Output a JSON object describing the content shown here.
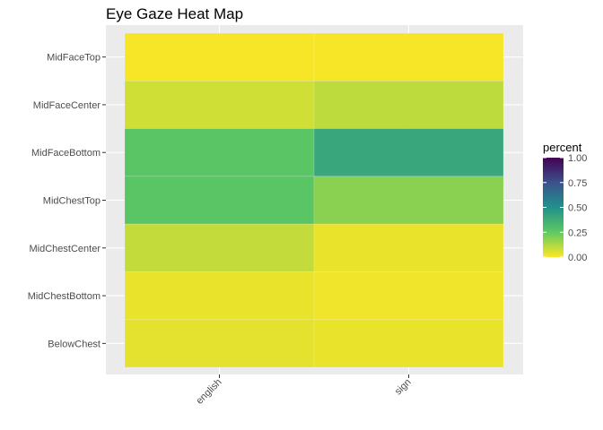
{
  "chart_data": {
    "type": "heatmap",
    "title": "Eye Gaze Heat Map",
    "xlabel": "",
    "ylabel": "",
    "x_categories": [
      "english",
      "sign"
    ],
    "y_categories": [
      "MidFaceTop",
      "MidFaceCenter",
      "MidFaceBottom",
      "MidChestTop",
      "MidChestCenter",
      "MidChestBottom",
      "BelowChest"
    ],
    "values": [
      [
        0.01,
        0.01
      ],
      [
        0.07,
        0.1
      ],
      [
        0.27,
        0.4
      ],
      [
        0.27,
        0.18
      ],
      [
        0.09,
        0.03
      ],
      [
        0.03,
        0.02
      ],
      [
        0.04,
        0.03
      ]
    ],
    "color_scale": {
      "name": "viridis",
      "reversed": true,
      "domain": [
        0,
        1
      ],
      "stops": [
        "#fde725",
        "#5ec962",
        "#21918c",
        "#3b528b",
        "#440154"
      ]
    },
    "legend": {
      "title": "percent",
      "ticks": [
        "1.00",
        "0.75",
        "0.50",
        "0.25",
        "0.00"
      ],
      "tick_values": [
        1.0,
        0.75,
        0.5,
        0.25,
        0.0
      ],
      "placement": "right"
    },
    "panel_background": "#ebebeb",
    "grid": true
  }
}
